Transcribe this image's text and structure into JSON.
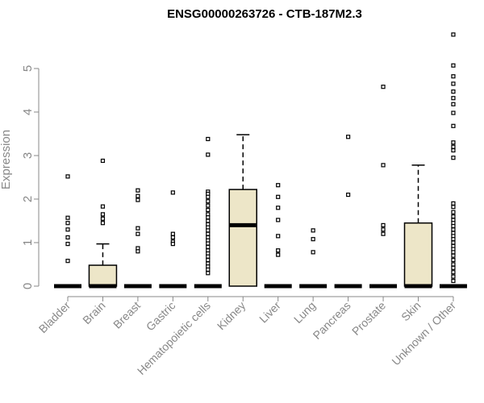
{
  "chart_data": {
    "type": "boxplot",
    "title": "ENSG00000263726 - CTB-187M2.3",
    "xlabel": "",
    "ylabel": "Expression",
    "ylim": [
      0,
      5.8
    ],
    "yticks": [
      0,
      1,
      2,
      3,
      4,
      5
    ],
    "grid": false,
    "legend": "none",
    "box_fill": "#ede6c8",
    "stroke_color": "#000000",
    "categories": [
      "Bladder",
      "Brain",
      "Breast",
      "Gastric",
      "Hematopoietic cells",
      "Kidney",
      "Liver",
      "Lung",
      "Pancreas",
      "Prostate",
      "Skin",
      "Unknown / Other"
    ],
    "boxes": [
      {
        "category": "Bladder",
        "q1": 0,
        "median": 0,
        "q3": 0,
        "whisker_low": 0,
        "whisker_high": 0,
        "outliers": [
          2.52,
          1.57,
          1.45,
          1.3,
          1.12,
          0.97,
          0.58
        ]
      },
      {
        "category": "Brain",
        "q1": 0,
        "median": 0,
        "q3": 0.48,
        "whisker_low": 0,
        "whisker_high": 0.97,
        "outliers": [
          2.88,
          1.83,
          1.65,
          1.55,
          1.45
        ]
      },
      {
        "category": "Breast",
        "q1": 0,
        "median": 0,
        "q3": 0,
        "whisker_low": 0,
        "whisker_high": 0,
        "outliers": [
          2.2,
          2.07,
          1.98,
          1.33,
          1.2,
          0.87,
          0.8
        ]
      },
      {
        "category": "Gastric",
        "q1": 0,
        "median": 0,
        "q3": 0,
        "whisker_low": 0,
        "whisker_high": 0,
        "outliers": [
          2.15,
          1.2,
          1.12,
          1.02,
          0.97
        ]
      },
      {
        "category": "Hematopoietic cells",
        "q1": 0,
        "median": 0,
        "q3": 0,
        "whisker_low": 0,
        "whisker_high": 0,
        "outliers": [
          3.38,
          3.02,
          2.17,
          2.12,
          2.05,
          1.95,
          1.85,
          1.75,
          1.65,
          1.58,
          1.5,
          1.42,
          1.35,
          1.28,
          1.2,
          1.12,
          1.05,
          0.98,
          0.9,
          0.82,
          0.75,
          0.68,
          0.6,
          0.52,
          0.45,
          0.38,
          0.3
        ]
      },
      {
        "category": "Kidney",
        "q1": 0,
        "median": 1.4,
        "q3": 2.22,
        "whisker_low": 0,
        "whisker_high": 3.48,
        "outliers": []
      },
      {
        "category": "Liver",
        "q1": 0,
        "median": 0,
        "q3": 0,
        "whisker_low": 0,
        "whisker_high": 0,
        "outliers": [
          2.32,
          2.05,
          1.8,
          1.52,
          1.15,
          0.82,
          0.72
        ]
      },
      {
        "category": "Lung",
        "q1": 0,
        "median": 0,
        "q3": 0,
        "whisker_low": 0,
        "whisker_high": 0,
        "outliers": [
          1.28,
          1.08,
          0.78
        ]
      },
      {
        "category": "Pancreas",
        "q1": 0,
        "median": 0,
        "q3": 0,
        "whisker_low": 0,
        "whisker_high": 0,
        "outliers": [
          3.43,
          2.1
        ]
      },
      {
        "category": "Prostate",
        "q1": 0,
        "median": 0,
        "q3": 0,
        "whisker_low": 0,
        "whisker_high": 0,
        "outliers": [
          4.58,
          2.78,
          1.4,
          1.3,
          1.2
        ]
      },
      {
        "category": "Skin",
        "q1": 0,
        "median": 0,
        "q3": 1.45,
        "whisker_low": 0,
        "whisker_high": 2.78,
        "outliers": []
      },
      {
        "category": "Unknown / Other",
        "q1": 0,
        "median": 0,
        "q3": 0,
        "whisker_low": 0,
        "whisker_high": 0,
        "outliers": [
          5.78,
          5.07,
          4.82,
          4.65,
          4.47,
          4.32,
          4.18,
          3.98,
          3.68,
          3.3,
          3.2,
          3.12,
          2.95,
          1.9,
          1.82,
          1.7,
          1.6,
          1.52,
          1.45,
          1.38,
          1.3,
          1.22,
          1.15,
          1.08,
          1.0,
          0.92,
          0.85,
          0.78,
          0.7,
          0.6,
          0.5,
          0.42,
          0.32,
          0.22,
          0.12
        ]
      }
    ]
  }
}
